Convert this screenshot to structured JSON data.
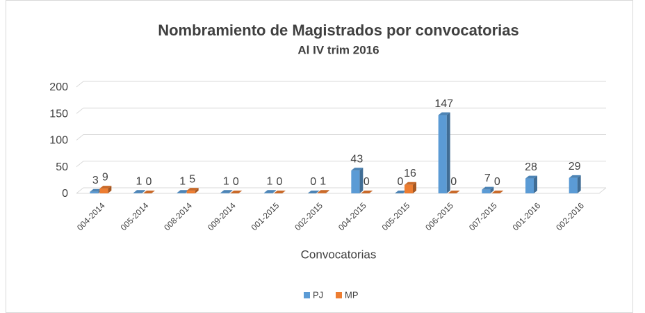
{
  "chart_data": {
    "type": "bar3d",
    "title": "Nombramiento de Magistrados por convocatorias",
    "subtitle": "Al IV trim 2016",
    "x_label": "Convocatorias",
    "categories": [
      "004-2014",
      "005-2014",
      "008-2014",
      "009-2014",
      "001-2015",
      "002-2015",
      "004-2015",
      "005-2015",
      "006-2015",
      "007-2015",
      "001-2016",
      "002-2016"
    ],
    "series": [
      {
        "name": "PJ",
        "color": "#5b9bd5",
        "values": [
          3,
          1,
          1,
          1,
          1,
          0,
          43,
          0,
          147,
          7,
          28,
          29
        ]
      },
      {
        "name": "MP",
        "color": "#ed7d31",
        "values": [
          9,
          0,
          5,
          0,
          0,
          1,
          0,
          16,
          0,
          0,
          null,
          null
        ]
      }
    ],
    "ylim": [
      0,
      200
    ],
    "yticks": [
      0,
      50,
      100,
      150,
      200
    ],
    "grid": true,
    "legend": "bottom"
  }
}
